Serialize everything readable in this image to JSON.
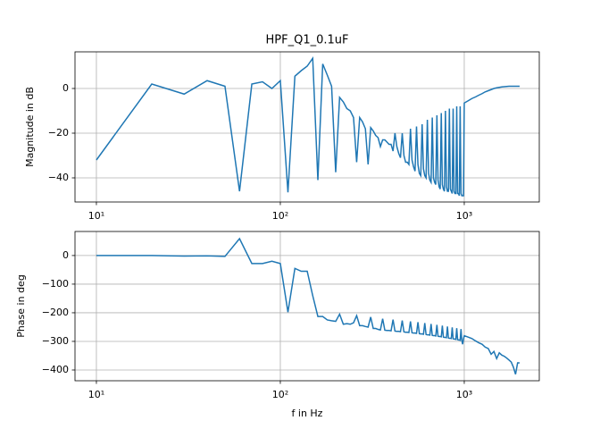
{
  "chart_data": [
    {
      "type": "line",
      "title": "HPF_Q1_0.1uF",
      "ylabel": "Magnitude in dB",
      "xscale": "log",
      "grid": true,
      "xlim": [
        7.65,
        2558
      ],
      "xticks": [
        {
          "value": 10,
          "label": "10¹"
        },
        {
          "value": 100,
          "label": "10²"
        },
        {
          "value": 1000,
          "label": "10³"
        }
      ],
      "ylim": [
        -50.8,
        16.4
      ],
      "yticks": [
        0,
        {
          "value": -20,
          "label": "−20"
        },
        {
          "value": -40,
          "label": "−40"
        }
      ],
      "x": [
        10,
        20,
        30,
        40,
        50,
        60,
        70,
        80,
        90,
        100,
        110,
        120,
        130,
        140,
        150,
        160,
        170,
        180,
        190,
        200,
        210,
        220,
        230,
        240,
        250,
        260,
        270,
        280,
        290,
        300,
        310,
        320,
        330,
        340,
        350,
        360,
        370,
        380,
        390,
        400,
        410,
        420,
        430,
        440,
        450,
        460,
        470,
        480,
        490,
        500,
        510,
        520,
        530,
        540,
        550,
        560,
        570,
        580,
        590,
        600,
        610,
        620,
        630,
        640,
        650,
        660,
        670,
        680,
        690,
        700,
        710,
        720,
        730,
        740,
        750,
        760,
        770,
        780,
        790,
        800,
        810,
        820,
        830,
        840,
        850,
        860,
        870,
        880,
        890,
        900,
        910,
        920,
        930,
        940,
        950,
        960,
        970,
        980,
        990,
        1000,
        1050,
        1100,
        1150,
        1200,
        1250,
        1300,
        1350,
        1400,
        1450,
        1500,
        1550,
        1600,
        1650,
        1700,
        1750,
        1800,
        1850,
        1900,
        1950,
        2000
      ],
      "series": [
        {
          "color": "#1f77b4",
          "values": [
            -32,
            2,
            -2.5,
            3.5,
            1,
            -46,
            2,
            3,
            0,
            3.5,
            -46.5,
            5.5,
            8,
            10,
            13.5,
            -41,
            11,
            6,
            1,
            -37.5,
            -4,
            -6,
            -9,
            -10,
            -13,
            -33,
            -13,
            -15,
            -18,
            -34,
            -17.5,
            -19,
            -21,
            -22,
            -26,
            -23,
            -23,
            -24,
            -25,
            -25,
            -28,
            -20,
            -26,
            -29,
            -31,
            -20,
            -30,
            -33,
            -33,
            -34,
            -18,
            -32,
            -35,
            -37,
            -17,
            -34,
            -38,
            -39,
            -16,
            -36,
            -39,
            -40,
            -14,
            -38,
            -41,
            -42,
            -13,
            -40,
            -42,
            -43,
            -12,
            -41,
            -44,
            -45,
            -11,
            -43,
            -45,
            -46,
            -10,
            -44,
            -46,
            -46,
            -9,
            -45,
            -46,
            -47,
            -9,
            -46,
            -47,
            -47,
            -8,
            -47,
            -47,
            -48,
            -8,
            -47,
            -48,
            -48,
            -48,
            -6.5,
            -5.5,
            -4.5,
            -3.8,
            -3,
            -2.3,
            -1.5,
            -1,
            -0.5,
            0,
            0.3,
            0.5,
            0.7,
            0.8,
            0.9,
            1,
            1,
            1,
            1,
            1,
            1
          ]
        }
      ]
    },
    {
      "type": "line",
      "ylabel": "Phase in deg",
      "xlabel": "f in Hz",
      "xscale": "log",
      "grid": true,
      "xlim": [
        7.65,
        2558
      ],
      "xticks": [
        {
          "value": 10,
          "label": "10¹"
        },
        {
          "value": 100,
          "label": "10²"
        },
        {
          "value": 1000,
          "label": "10³"
        }
      ],
      "ylim": [
        -437.5,
        84
      ],
      "yticks": [
        0,
        {
          "value": -100,
          "label": "−100"
        },
        {
          "value": -200,
          "label": "−200"
        },
        {
          "value": -300,
          "label": "−300"
        },
        {
          "value": -400,
          "label": "−400"
        }
      ],
      "x": [
        10,
        20,
        30,
        40,
        50,
        60,
        70,
        80,
        90,
        100,
        110,
        120,
        130,
        140,
        150,
        160,
        170,
        180,
        190,
        200,
        210,
        220,
        230,
        240,
        250,
        260,
        270,
        280,
        290,
        300,
        310,
        320,
        330,
        340,
        350,
        360,
        370,
        380,
        390,
        400,
        410,
        420,
        430,
        440,
        450,
        460,
        470,
        480,
        490,
        500,
        510,
        520,
        530,
        540,
        550,
        560,
        570,
        580,
        590,
        600,
        610,
        620,
        630,
        640,
        650,
        660,
        670,
        680,
        690,
        700,
        710,
        720,
        730,
        740,
        750,
        760,
        770,
        780,
        790,
        800,
        810,
        820,
        830,
        840,
        850,
        860,
        870,
        880,
        890,
        900,
        910,
        920,
        930,
        940,
        950,
        960,
        970,
        980,
        990,
        1000,
        1050,
        1100,
        1150,
        1200,
        1250,
        1300,
        1350,
        1400,
        1450,
        1500,
        1550,
        1600,
        1650,
        1700,
        1750,
        1800,
        1850,
        1900,
        1950,
        2000
      ],
      "series": [
        {
          "color": "#1f77b4",
          "values": [
            0,
            0,
            -2,
            -1,
            -3,
            59,
            -28,
            -28,
            -20,
            -28,
            -198,
            -45,
            -55,
            -55,
            -140,
            -213,
            -213,
            -225,
            -228,
            -230,
            -205,
            -240,
            -238,
            -240,
            -235,
            -210,
            -245,
            -245,
            -248,
            -250,
            -215,
            -255,
            -255,
            -258,
            -260,
            -221,
            -261,
            -262,
            -262,
            -263,
            -224,
            -264,
            -265,
            -265,
            -266,
            -227,
            -267,
            -268,
            -268,
            -269,
            -230,
            -270,
            -271,
            -271,
            -272,
            -233,
            -273,
            -274,
            -274,
            -275,
            -236,
            -276,
            -277,
            -277,
            -278,
            -239,
            -279,
            -280,
            -280,
            -281,
            -242,
            -282,
            -283,
            -283,
            -284,
            -245,
            -285,
            -286,
            -286,
            -287,
            -248,
            -288,
            -289,
            -289,
            -290,
            -251,
            -291,
            -292,
            -292,
            -293,
            -254,
            -294,
            -295,
            -295,
            -296,
            -257,
            -297,
            -310,
            -292,
            -280,
            -285,
            -290,
            -298,
            -305,
            -310,
            -320,
            -325,
            -345,
            -335,
            -360,
            -340,
            -348,
            -352,
            -358,
            -365,
            -372,
            -390,
            -415,
            -375,
            -375
          ]
        }
      ]
    }
  ]
}
